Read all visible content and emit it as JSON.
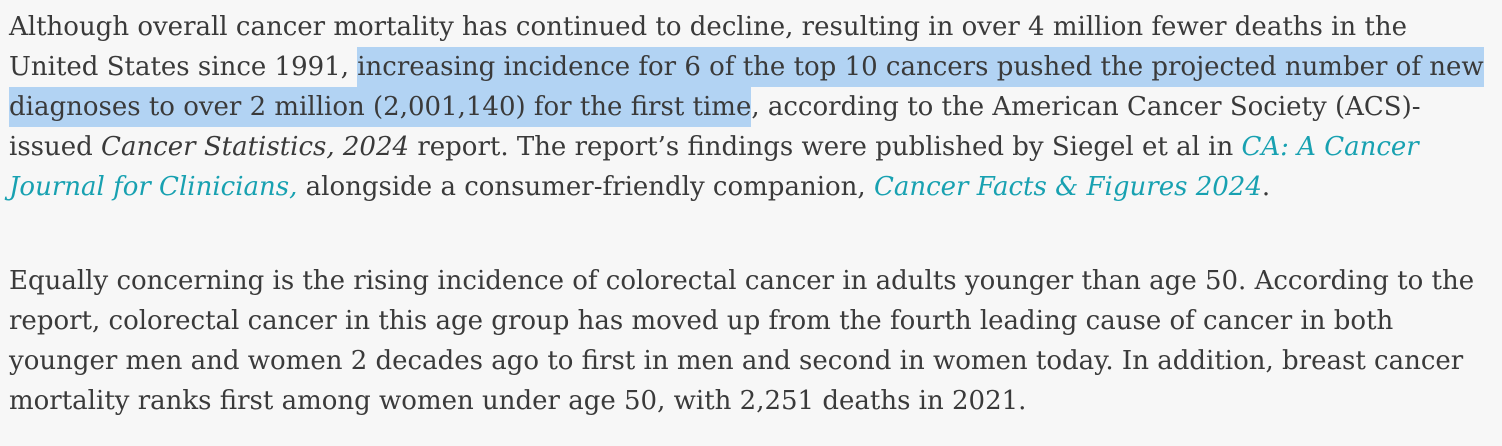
{
  "page": {
    "background_color": "#f7f7f7",
    "text_color": "#3a3a3a",
    "highlight_color": "#b2d3f3",
    "link_color": "#18a1b1"
  },
  "article": {
    "paragraph1": {
      "segments": [
        {
          "text": "Although overall cancer mortality has continued to decline, resulting in over 4 million fewer deaths in the United States since 1991, ",
          "style": "plain"
        },
        {
          "text": "increasing incidence for 6 of the top 10 cancers pushed the projected number of new diagnoses to over 2 million (2,001,140) for the first time",
          "style": "highlight"
        },
        {
          "text": ", according to the American Cancer Society (ACS)-issued ",
          "style": "plain"
        },
        {
          "text": "Cancer Statistics, 2024",
          "style": "italic-title"
        },
        {
          "text": " report. The report’s findings were published by Siegel et al in ",
          "style": "plain"
        },
        {
          "text": "CA: A Cancer Journal for Clinicians,",
          "style": "link-italic"
        },
        {
          "text": " alongside a consumer-friendly companion, ",
          "style": "plain"
        },
        {
          "text": "Cancer Facts & Figures 2024",
          "style": "link-italic"
        },
        {
          "text": ".",
          "style": "plain"
        }
      ]
    },
    "paragraph2": {
      "text": "Equally concerning is the rising incidence of colorectal cancer in adults younger than age 50. According to the report, colorectal cancer in this age group has moved up from the fourth leading cause of cancer in both younger men and women 2 decades ago to first in men and second in women today. In addition, breast cancer mortality ranks first among women under age 50, with 2,251 deaths in 2021."
    }
  }
}
